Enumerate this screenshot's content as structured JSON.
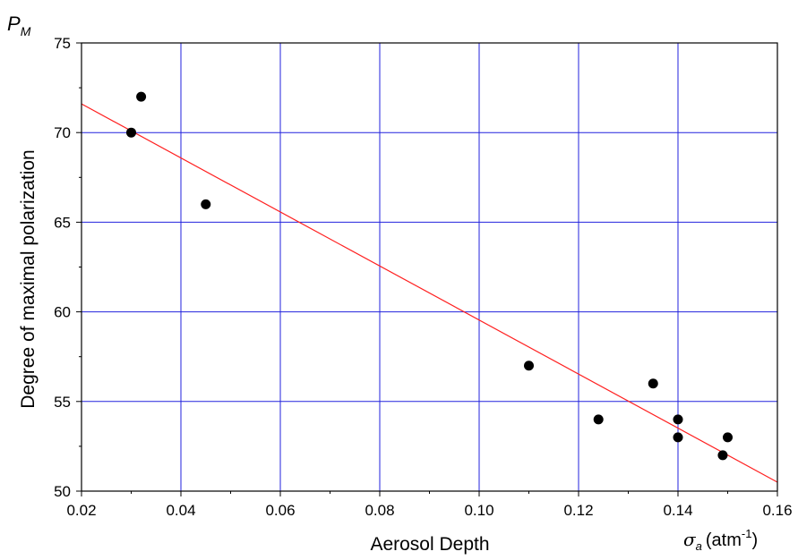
{
  "chart_data": {
    "type": "scatter",
    "xlabel": "Aerosol Depth",
    "ylabel": "Degree of maximal polarization",
    "y_symbol": {
      "main": "P",
      "sub": "M"
    },
    "x_unit": {
      "symbol": "σ",
      "sub": "a",
      "unit": "(atm",
      "sup": "-1",
      "close": ")"
    },
    "xlim": [
      0.02,
      0.16
    ],
    "ylim": [
      50,
      75
    ],
    "xticks": [
      0.02,
      0.04,
      0.06,
      0.08,
      0.1,
      0.12,
      0.14,
      0.16
    ],
    "xtick_labels": [
      "0.02",
      "0.04",
      "0.06",
      "0.08",
      "0.10",
      "0.12",
      "0.14",
      "0.16"
    ],
    "yticks": [
      50,
      55,
      60,
      65,
      70,
      75
    ],
    "ytick_labels": [
      "50",
      "55",
      "60",
      "65",
      "70",
      "75"
    ],
    "grid": true,
    "grid_color": "#2222dd",
    "point_color": "#000000",
    "fit_color": "#ff2020",
    "points": [
      {
        "x": 0.03,
        "y": 70
      },
      {
        "x": 0.032,
        "y": 72
      },
      {
        "x": 0.045,
        "y": 66
      },
      {
        "x": 0.11,
        "y": 57
      },
      {
        "x": 0.124,
        "y": 54
      },
      {
        "x": 0.135,
        "y": 56
      },
      {
        "x": 0.14,
        "y": 54
      },
      {
        "x": 0.14,
        "y": 53
      },
      {
        "x": 0.149,
        "y": 52
      },
      {
        "x": 0.15,
        "y": 53
      }
    ],
    "fit_line": {
      "x": [
        0.02,
        0.16
      ],
      "y": [
        71.6,
        50.5
      ]
    }
  }
}
